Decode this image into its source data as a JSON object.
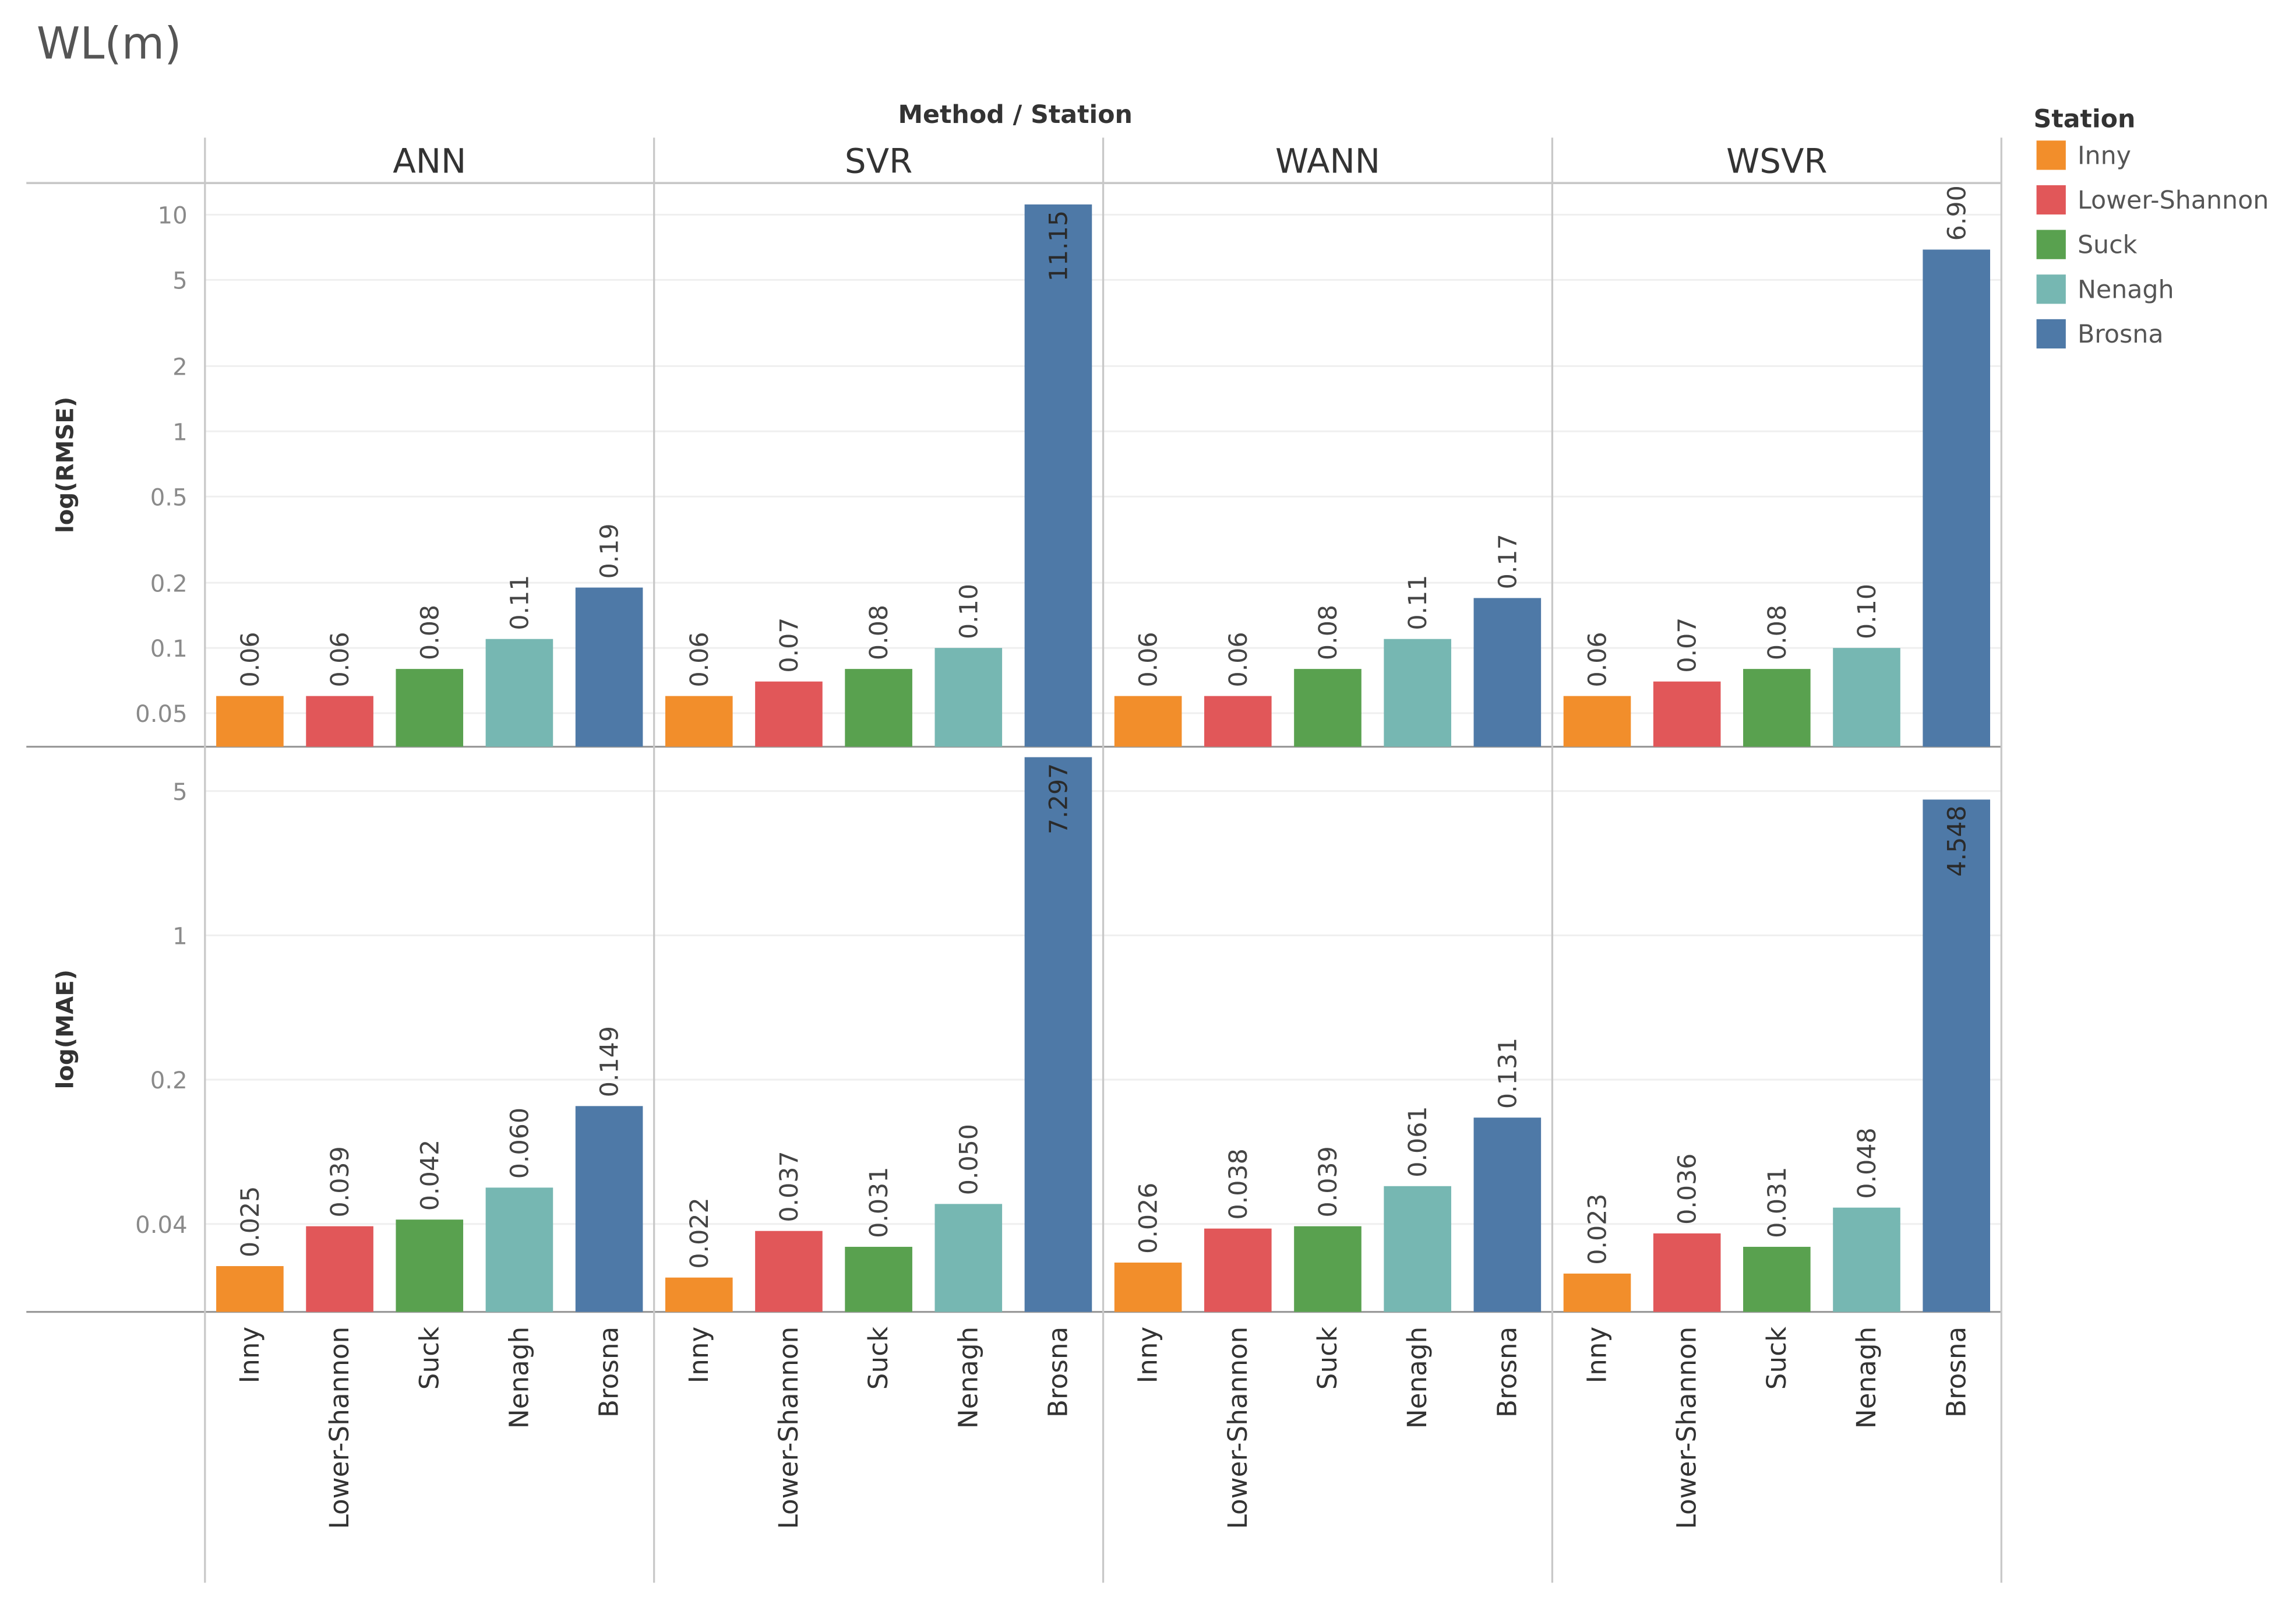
{
  "chart_data": {
    "type": "bar",
    "title": "WL(m)",
    "column_header": "Method / Station",
    "methods": [
      "ANN",
      "SVR",
      "WANN",
      "WSVR"
    ],
    "stations": [
      "Inny",
      "Lower-Shannon",
      "Suck",
      "Nenagh",
      "Brosna"
    ],
    "legend": {
      "title": "Station",
      "placement": "top-right",
      "items": [
        {
          "label": "Inny",
          "color": "#F28E2B"
        },
        {
          "label": "Lower-Shannon",
          "color": "#E15759"
        },
        {
          "label": "Suck",
          "color": "#59A14F"
        },
        {
          "label": "Nenagh",
          "color": "#76B7B2"
        },
        {
          "label": "Brosna",
          "color": "#4E79A7"
        }
      ]
    },
    "rows": [
      {
        "metric": "RMSE",
        "ylabel": "log(RMSE)",
        "scale": "log",
        "ylim": [
          0.035,
          14
        ],
        "ticks": [
          {
            "value": 10,
            "label": "10"
          },
          {
            "value": 5,
            "label": "5"
          },
          {
            "value": 2,
            "label": "2"
          },
          {
            "value": 1,
            "label": "1"
          },
          {
            "value": 0.5,
            "label": "0.5"
          },
          {
            "value": 0.2,
            "label": "0.2"
          },
          {
            "value": 0.1,
            "label": "0.1"
          },
          {
            "value": 0.05,
            "label": "0.05"
          }
        ],
        "series": [
          {
            "method": "ANN",
            "values": [
              0.06,
              0.06,
              0.08,
              0.11,
              0.19
            ],
            "labels": [
              "0.06",
              "0.06",
              "0.08",
              "0.11",
              "0.19"
            ]
          },
          {
            "method": "SVR",
            "values": [
              0.06,
              0.07,
              0.08,
              0.1,
              11.15
            ],
            "labels": [
              "0.06",
              "0.07",
              "0.08",
              "0.10",
              "11.15"
            ]
          },
          {
            "method": "WANN",
            "values": [
              0.06,
              0.06,
              0.08,
              0.11,
              0.17
            ],
            "labels": [
              "0.06",
              "0.06",
              "0.08",
              "0.11",
              "0.17"
            ]
          },
          {
            "method": "WSVR",
            "values": [
              0.06,
              0.07,
              0.08,
              0.1,
              6.9
            ],
            "labels": [
              "0.06",
              "0.07",
              "0.08",
              "0.10",
              "6.90"
            ]
          }
        ]
      },
      {
        "metric": "MAE",
        "ylabel": "log(MAE)",
        "scale": "log",
        "ylim": [
          0.015,
          8.2
        ],
        "ticks": [
          {
            "value": 5,
            "label": "5"
          },
          {
            "value": 1,
            "label": "1"
          },
          {
            "value": 0.2,
            "label": "0.2"
          },
          {
            "value": 0.04,
            "label": "0.04"
          }
        ],
        "series": [
          {
            "method": "ANN",
            "values": [
              0.025,
              0.039,
              0.042,
              0.06,
              0.149
            ],
            "labels": [
              "0.025",
              "0.039",
              "0.042",
              "0.060",
              "0.149"
            ]
          },
          {
            "method": "SVR",
            "values": [
              0.022,
              0.037,
              0.031,
              0.05,
              7.297
            ],
            "labels": [
              "0.022",
              "0.037",
              "0.031",
              "0.050",
              "7.297"
            ]
          },
          {
            "method": "WANN",
            "values": [
              0.026,
              0.038,
              0.039,
              0.061,
              0.131
            ],
            "labels": [
              "0.026",
              "0.038",
              "0.039",
              "0.061",
              "0.131"
            ]
          },
          {
            "method": "WSVR",
            "values": [
              0.023,
              0.036,
              0.031,
              0.048,
              4.548
            ],
            "labels": [
              "0.023",
              "0.036",
              "0.031",
              "0.048",
              "4.548"
            ]
          }
        ]
      }
    ]
  }
}
